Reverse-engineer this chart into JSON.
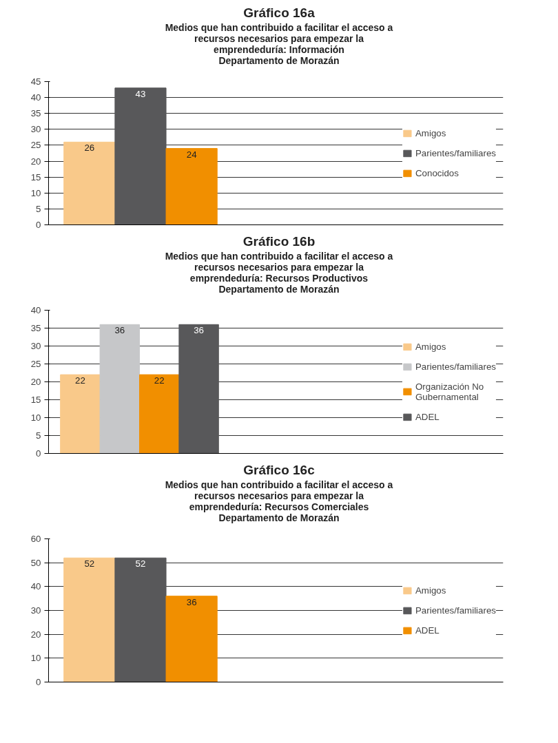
{
  "chart_data": [
    {
      "type": "bar",
      "title": "Gráfico 16a",
      "subtitle": "Medios que han contribuido a facilitar el acceso a\nrecursos necesarios para empezar la\nemprendeduría: Información\nDepartamento de Morazán",
      "categories": [
        null
      ],
      "series": [
        {
          "name": "Amigos",
          "color": "#f9c98a",
          "values": [
            26
          ]
        },
        {
          "name": "Parientes/familiares",
          "color": "#58585a",
          "values": [
            43
          ]
        },
        {
          "name": "Conocidos",
          "color": "#f18f00",
          "values": [
            24
          ]
        }
      ],
      "ylim": [
        0,
        45
      ],
      "yticks": [
        0,
        5,
        10,
        15,
        20,
        25,
        30,
        35,
        40,
        45
      ],
      "grid": "y",
      "legend": "right",
      "data_labels": true
    },
    {
      "type": "bar",
      "title": "Gráfico 16b",
      "subtitle": "Medios que han contribuido a facilitar el acceso a\nrecursos necesarios para empezar la\nemprendeduría: Recursos Productivos\nDepartamento de Morazán",
      "categories": [
        null
      ],
      "series": [
        {
          "name": "Amigos",
          "color": "#f9c98a",
          "values": [
            22
          ]
        },
        {
          "name": "Parientes/familiares",
          "color": "#c6c7c9",
          "values": [
            36
          ]
        },
        {
          "name": "Organización No\nGubernamental",
          "color": "#f18f00",
          "values": [
            22
          ]
        },
        {
          "name": "ADEL",
          "color": "#58585a",
          "values": [
            36
          ]
        }
      ],
      "ylim": [
        0,
        40
      ],
      "yticks": [
        0,
        5,
        10,
        15,
        20,
        25,
        30,
        35,
        40
      ],
      "grid": "y",
      "legend": "right",
      "data_labels": true
    },
    {
      "type": "bar",
      "title": "Gráfico 16c",
      "subtitle": "Medios que han contribuido a facilitar el acceso a\nrecursos necesarios para empezar la\nemprendeduría: Recursos Comerciales\nDepartamento de Morazán",
      "categories": [
        null
      ],
      "series": [
        {
          "name": "Amigos",
          "color": "#f9c98a",
          "values": [
            52
          ]
        },
        {
          "name": "Parientes/familiares",
          "color": "#58585a",
          "values": [
            52
          ]
        },
        {
          "name": "ADEL",
          "color": "#f18f00",
          "values": [
            36
          ]
        }
      ],
      "ylim": [
        0,
        60
      ],
      "yticks": [
        0,
        10,
        20,
        30,
        40,
        50,
        60
      ],
      "grid": "y",
      "legend": "right",
      "data_labels": true
    }
  ]
}
